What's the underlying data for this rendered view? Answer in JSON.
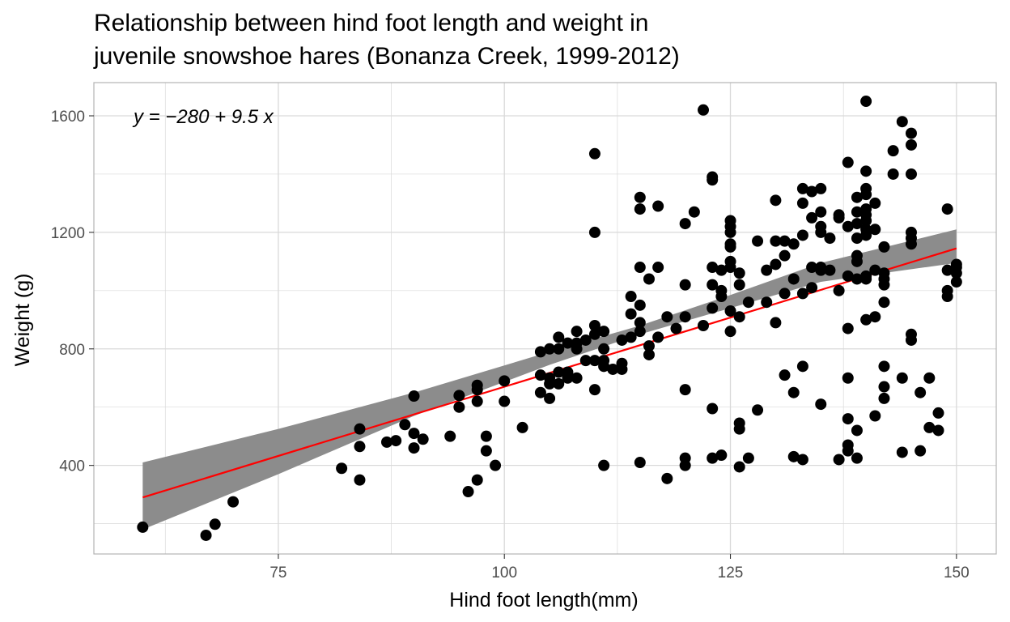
{
  "chart_data": {
    "type": "scatter",
    "title": [
      "Relationship between hind foot length and weight in",
      "juvenile snowshoe hares (Bonanza Creek, 1999-2012)"
    ],
    "xlabel": "Hind foot length(mm)",
    "ylabel": "Weight (g)",
    "xlim": [
      54.6,
      154.4
    ],
    "ylim": [
      96,
      1714
    ],
    "x_ticks": [
      75,
      100,
      125,
      150
    ],
    "x_tick_labels": [
      "75",
      "100",
      "125",
      "150"
    ],
    "y_ticks": [
      400,
      800,
      1200,
      1600
    ],
    "y_tick_labels": [
      "400",
      "800",
      "1200",
      "1600"
    ],
    "grid": true,
    "legend": "none",
    "annotation": "y = −280 + 9.5 x",
    "regression": {
      "intercept": -280,
      "slope": 9.5,
      "x_range": [
        60,
        150
      ]
    },
    "confidence_band": [
      [
        60,
        180,
        410
      ],
      [
        75,
        370,
        525
      ],
      [
        90,
        570,
        650
      ],
      [
        105,
        745,
        790
      ],
      [
        115,
        850,
        880
      ],
      [
        125,
        940,
        985
      ],
      [
        135,
        1030,
        1095
      ],
      [
        150,
        1095,
        1210
      ]
    ],
    "colors": {
      "points": "#000000",
      "line": "#ff0000",
      "band": "#8c8c8c",
      "grid": "#d9d9d9",
      "panel_border": "#b3b3b3"
    },
    "points": [
      [
        60,
        188
      ],
      [
        67,
        160
      ],
      [
        68,
        198
      ],
      [
        70,
        275
      ],
      [
        82,
        390
      ],
      [
        84,
        350
      ],
      [
        84,
        465
      ],
      [
        84,
        525
      ],
      [
        87,
        480
      ],
      [
        88,
        485
      ],
      [
        89,
        540
      ],
      [
        90,
        460
      ],
      [
        90,
        510
      ],
      [
        90,
        638
      ],
      [
        91,
        490
      ],
      [
        94,
        500
      ],
      [
        95,
        600
      ],
      [
        95,
        640
      ],
      [
        96,
        310
      ],
      [
        97,
        350
      ],
      [
        97,
        620
      ],
      [
        97,
        660
      ],
      [
        97,
        675
      ],
      [
        98,
        450
      ],
      [
        98,
        500
      ],
      [
        99,
        400
      ],
      [
        100,
        620
      ],
      [
        100,
        690
      ],
      [
        102,
        530
      ],
      [
        104,
        650
      ],
      [
        104,
        710
      ],
      [
        104,
        790
      ],
      [
        105,
        630
      ],
      [
        105,
        680
      ],
      [
        105,
        700
      ],
      [
        105,
        800
      ],
      [
        106,
        680
      ],
      [
        106,
        720
      ],
      [
        106,
        800
      ],
      [
        106,
        840
      ],
      [
        107,
        700
      ],
      [
        107,
        720
      ],
      [
        107,
        820
      ],
      [
        108,
        700
      ],
      [
        108,
        800
      ],
      [
        108,
        820
      ],
      [
        108,
        860
      ],
      [
        109,
        760
      ],
      [
        109,
        830
      ],
      [
        110,
        660
      ],
      [
        110,
        760
      ],
      [
        110,
        850
      ],
      [
        110,
        880
      ],
      [
        110,
        1200
      ],
      [
        110,
        1470
      ],
      [
        111,
        400
      ],
      [
        111,
        740
      ],
      [
        111,
        760
      ],
      [
        111,
        800
      ],
      [
        111,
        860
      ],
      [
        112,
        730
      ],
      [
        113,
        730
      ],
      [
        113,
        750
      ],
      [
        113,
        830
      ],
      [
        114,
        840
      ],
      [
        114,
        920
      ],
      [
        114,
        980
      ],
      [
        115,
        410
      ],
      [
        115,
        860
      ],
      [
        115,
        890
      ],
      [
        115,
        950
      ],
      [
        115,
        1080
      ],
      [
        115,
        1280
      ],
      [
        115,
        1320
      ],
      [
        116,
        780
      ],
      [
        116,
        810
      ],
      [
        116,
        1040
      ],
      [
        117,
        840
      ],
      [
        117,
        1080
      ],
      [
        117,
        1290
      ],
      [
        118,
        355
      ],
      [
        118,
        910
      ],
      [
        119,
        870
      ],
      [
        120,
        400
      ],
      [
        120,
        425
      ],
      [
        120,
        660
      ],
      [
        120,
        910
      ],
      [
        120,
        1020
      ],
      [
        120,
        1230
      ],
      [
        121,
        1270
      ],
      [
        122,
        880
      ],
      [
        122,
        1620
      ],
      [
        123,
        425
      ],
      [
        123,
        595
      ],
      [
        123,
        940
      ],
      [
        123,
        1020
      ],
      [
        123,
        1080
      ],
      [
        123,
        1380
      ],
      [
        123,
        1390
      ],
      [
        124,
        435
      ],
      [
        124,
        980
      ],
      [
        124,
        1000
      ],
      [
        124,
        1070
      ],
      [
        125,
        860
      ],
      [
        125,
        930
      ],
      [
        125,
        1080
      ],
      [
        125,
        1100
      ],
      [
        125,
        1150
      ],
      [
        125,
        1160
      ],
      [
        125,
        1200
      ],
      [
        125,
        1220
      ],
      [
        125,
        1240
      ],
      [
        126,
        395
      ],
      [
        126,
        525
      ],
      [
        126,
        545
      ],
      [
        126,
        910
      ],
      [
        126,
        1020
      ],
      [
        126,
        1060
      ],
      [
        127,
        425
      ],
      [
        127,
        960
      ],
      [
        128,
        590
      ],
      [
        128,
        1170
      ],
      [
        129,
        960
      ],
      [
        129,
        1070
      ],
      [
        130,
        890
      ],
      [
        130,
        1090
      ],
      [
        130,
        1170
      ],
      [
        130,
        1310
      ],
      [
        131,
        710
      ],
      [
        131,
        990
      ],
      [
        131,
        1120
      ],
      [
        131,
        1170
      ],
      [
        132,
        430
      ],
      [
        132,
        650
      ],
      [
        132,
        1040
      ],
      [
        132,
        1160
      ],
      [
        133,
        420
      ],
      [
        133,
        740
      ],
      [
        133,
        990
      ],
      [
        133,
        1190
      ],
      [
        133,
        1300
      ],
      [
        133,
        1350
      ],
      [
        134,
        1010
      ],
      [
        134,
        1080
      ],
      [
        134,
        1250
      ],
      [
        134,
        1340
      ],
      [
        135,
        610
      ],
      [
        135,
        1070
      ],
      [
        135,
        1080
      ],
      [
        135,
        1200
      ],
      [
        135,
        1220
      ],
      [
        135,
        1270
      ],
      [
        135,
        1350
      ],
      [
        136,
        1070
      ],
      [
        136,
        1180
      ],
      [
        137,
        420
      ],
      [
        137,
        1000
      ],
      [
        137,
        1250
      ],
      [
        137,
        1260
      ],
      [
        138,
        450
      ],
      [
        138,
        470
      ],
      [
        138,
        560
      ],
      [
        138,
        700
      ],
      [
        138,
        870
      ],
      [
        138,
        1050
      ],
      [
        138,
        1220
      ],
      [
        138,
        1440
      ],
      [
        139,
        425
      ],
      [
        139,
        520
      ],
      [
        139,
        1040
      ],
      [
        139,
        1100
      ],
      [
        139,
        1120
      ],
      [
        139,
        1180
      ],
      [
        139,
        1230
      ],
      [
        139,
        1270
      ],
      [
        139,
        1320
      ],
      [
        140,
        900
      ],
      [
        140,
        1040
      ],
      [
        140,
        1050
      ],
      [
        140,
        1190
      ],
      [
        140,
        1210
      ],
      [
        140,
        1240
      ],
      [
        140,
        1260
      ],
      [
        140,
        1280
      ],
      [
        140,
        1330
      ],
      [
        140,
        1350
      ],
      [
        140,
        1410
      ],
      [
        140,
        1650
      ],
      [
        141,
        570
      ],
      [
        141,
        910
      ],
      [
        141,
        1070
      ],
      [
        141,
        1210
      ],
      [
        141,
        1300
      ],
      [
        142,
        630
      ],
      [
        142,
        670
      ],
      [
        142,
        740
      ],
      [
        142,
        960
      ],
      [
        142,
        1020
      ],
      [
        142,
        1040
      ],
      [
        142,
        1060
      ],
      [
        142,
        1150
      ],
      [
        143,
        1400
      ],
      [
        143,
        1480
      ],
      [
        144,
        445
      ],
      [
        144,
        700
      ],
      [
        144,
        1580
      ],
      [
        145,
        830
      ],
      [
        145,
        850
      ],
      [
        145,
        1160
      ],
      [
        145,
        1180
      ],
      [
        145,
        1200
      ],
      [
        145,
        1400
      ],
      [
        145,
        1500
      ],
      [
        145,
        1540
      ],
      [
        146,
        450
      ],
      [
        146,
        650
      ],
      [
        147,
        530
      ],
      [
        147,
        700
      ],
      [
        148,
        520
      ],
      [
        148,
        580
      ],
      [
        149,
        980
      ],
      [
        149,
        1000
      ],
      [
        149,
        1070
      ],
      [
        149,
        1280
      ],
      [
        150,
        1030
      ],
      [
        150,
        1060
      ],
      [
        150,
        1080
      ],
      [
        150,
        1090
      ]
    ]
  }
}
